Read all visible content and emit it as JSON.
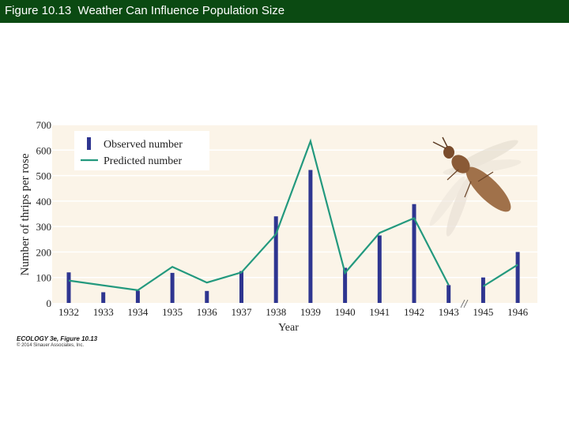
{
  "slide": {
    "title": "Figure 10.13  Weather Can Influence Population Size",
    "credit_line1": "ECOLOGY 3e, Figure 10.13",
    "credit_line2": "© 2014 Sinauer Associates, Inc."
  },
  "colors": {
    "title_bar": "#0b4a12",
    "plot_background": "#fbf4e8",
    "observed_bar": "#2e3590",
    "predicted_line": "#23997e"
  },
  "icons": {
    "insect": "thrips-insect-illustration"
  },
  "chart_data": {
    "type": "bar",
    "xlabel": "Year",
    "ylabel": "Number of thrips per rose",
    "ylim": [
      0,
      700
    ],
    "yticks": [
      0,
      100,
      200,
      300,
      400,
      500,
      600,
      700
    ],
    "legend_position": "top-left",
    "categories": [
      "1932",
      "1933",
      "1934",
      "1935",
      "1936",
      "1937",
      "1938",
      "1939",
      "1940",
      "1941",
      "1942",
      "1943",
      "1945",
      "1946"
    ],
    "axis_break_between": [
      "1943",
      "1945"
    ],
    "series": [
      {
        "name": "Observed number",
        "type": "bar",
        "values": [
          120,
          42,
          48,
          118,
          47,
          125,
          340,
          522,
          138,
          265,
          388,
          70,
          100,
          200
        ]
      },
      {
        "name": "Predicted number",
        "type": "line",
        "values": [
          88,
          null,
          50,
          142,
          80,
          120,
          270,
          635,
          118,
          275,
          333,
          70,
          65,
          150
        ]
      }
    ]
  }
}
